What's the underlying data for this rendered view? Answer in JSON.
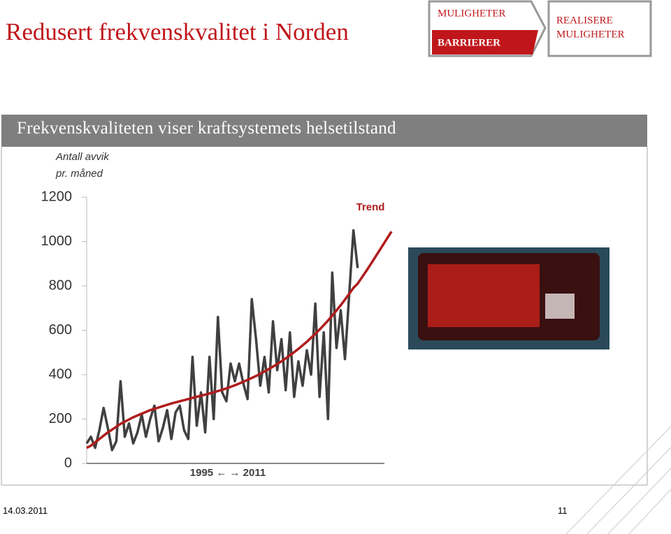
{
  "slide": {
    "title": "Redusert frekvenskvalitet i Norden",
    "nav": [
      "MULIGHETER",
      "BARRIERER",
      "REALISERE",
      "MULIGHETER"
    ],
    "banner": "Frekvenskvaliteten viser kraftsystemets helsetilstand",
    "date": "14.03.2011",
    "page": "11"
  },
  "chart_data": {
    "type": "line",
    "ylabel": [
      "Antall avvik",
      "pr. måned"
    ],
    "xlabel": "1995 ← → 2011",
    "annotation": "Trend",
    "ylim": [
      0,
      1200
    ],
    "yticks": [
      0,
      200,
      400,
      600,
      800,
      1000,
      1200
    ],
    "xlim": [
      1995,
      2013.2
    ],
    "x": [
      1995,
      1995.25,
      1995.5,
      1995.75,
      1996,
      1996.25,
      1996.5,
      1996.75,
      1997,
      1997.25,
      1997.5,
      1997.75,
      1998,
      1998.25,
      1998.5,
      1998.75,
      1999,
      1999.25,
      1999.5,
      1999.75,
      2000,
      2000.25,
      2000.5,
      2000.75,
      2001,
      2001.25,
      2001.5,
      2001.75,
      2002,
      2002.25,
      2002.5,
      2002.75,
      2003,
      2003.25,
      2003.5,
      2003.75,
      2004,
      2004.25,
      2004.5,
      2004.75,
      2005,
      2005.25,
      2005.5,
      2005.75,
      2006,
      2006.25,
      2006.5,
      2006.75,
      2007,
      2007.25,
      2007.5,
      2007.75,
      2008,
      2008.25,
      2008.5,
      2008.75,
      2009,
      2009.25,
      2009.5,
      2009.75,
      2010,
      2010.25,
      2010.5,
      2010.75,
      2011,
      2011.25,
      2011.5,
      2011.75,
      2012,
      2012.25,
      2012.5,
      2012.75,
      2013
    ],
    "series": [
      {
        "color": "#404040",
        "values": [
          90,
          120,
          70,
          150,
          250,
          160,
          60,
          100,
          370,
          120,
          180,
          90,
          140,
          220,
          120,
          200,
          260,
          100,
          160,
          240,
          110,
          230,
          260,
          150,
          110,
          480,
          170,
          320,
          140,
          480,
          200,
          660,
          320,
          280,
          450,
          370,
          450,
          360,
          290,
          740,
          560,
          350,
          480,
          320,
          640,
          420,
          560,
          330,
          590,
          300,
          460,
          350,
          510,
          400,
          720,
          300,
          590,
          200,
          860,
          520,
          690,
          470,
          760,
          1050,
          880,
          null,
          null,
          null,
          null,
          null,
          null,
          null,
          null
        ]
      },
      {
        "name": "Trend",
        "color": "#b01c1c",
        "values": [
          70,
          80,
          95,
          110,
          125,
          140,
          152,
          165,
          178,
          188,
          198,
          208,
          216,
          224,
          232,
          240,
          246,
          252,
          258,
          264,
          270,
          275,
          280,
          285,
          290,
          295,
          300,
          305,
          310,
          315,
          320,
          326,
          332,
          338,
          345,
          352,
          360,
          368,
          376,
          385,
          394,
          404,
          414,
          425,
          436,
          448,
          460,
          473,
          487,
          501,
          516,
          532,
          548,
          566,
          584,
          603,
          623,
          644,
          666,
          689,
          713,
          738,
          764,
          791,
          810,
          838,
          866,
          895,
          925,
          955,
          985,
          1015,
          1045
        ]
      }
    ]
  }
}
